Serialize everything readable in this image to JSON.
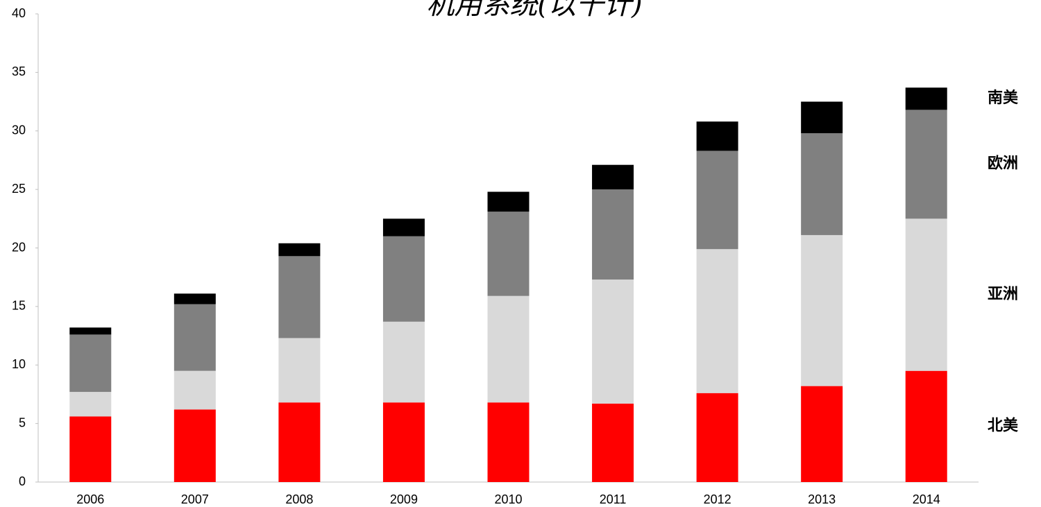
{
  "chart_data": {
    "type": "stacked_bar",
    "title": "机用系统(以千计)",
    "categories": [
      "2006",
      "2007",
      "2008",
      "2009",
      "2010",
      "2011",
      "2012",
      "2013",
      "2014"
    ],
    "series": [
      {
        "name": "北美",
        "color": "#ff0000",
        "values": [
          5.6,
          6.2,
          6.8,
          6.8,
          6.8,
          6.7,
          7.6,
          8.2,
          9.5
        ]
      },
      {
        "name": "亚洲",
        "color": "#d9d9d9",
        "values": [
          2.1,
          3.3,
          5.5,
          6.9,
          9.1,
          10.6,
          12.3,
          12.9,
          13.0
        ]
      },
      {
        "name": "欧洲",
        "color": "#808080",
        "values": [
          4.9,
          5.7,
          7.0,
          7.3,
          7.2,
          7.7,
          8.4,
          8.7,
          9.3
        ]
      },
      {
        "name": "南美",
        "color": "#000000",
        "values": [
          0.6,
          0.9,
          1.1,
          1.5,
          1.7,
          2.1,
          2.5,
          2.7,
          1.9
        ]
      }
    ],
    "ylim": [
      0,
      40
    ],
    "yticks": [
      0,
      5,
      10,
      15,
      20,
      25,
      30,
      35,
      40
    ]
  }
}
